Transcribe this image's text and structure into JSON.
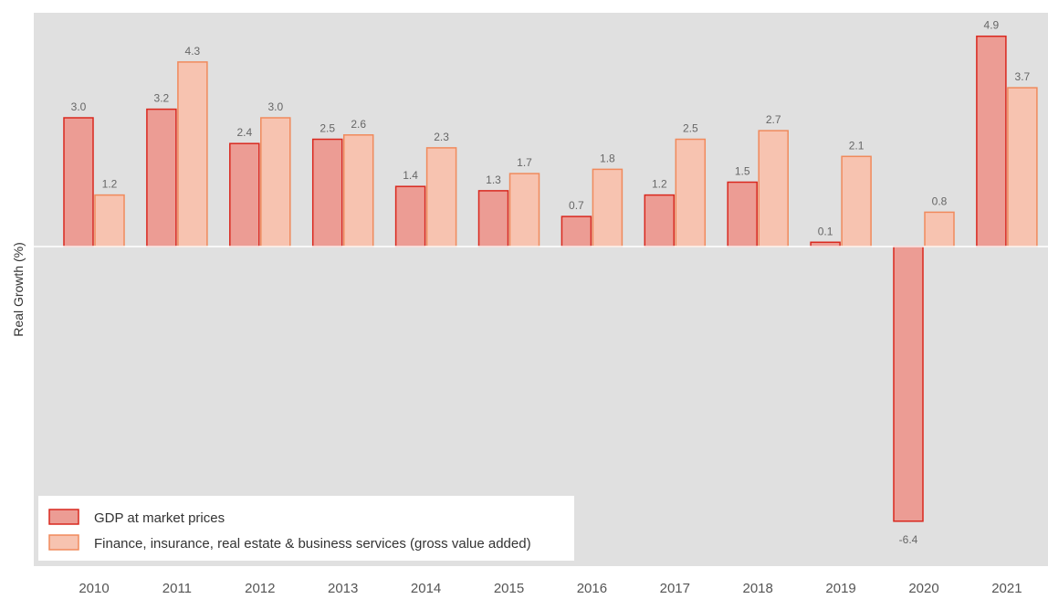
{
  "colors": {
    "plot_background": "#e0e0e0",
    "gdp_fill": "#ec9c94",
    "gdp_stroke": "#d9281e",
    "finance_fill": "#f7c3b0",
    "finance_stroke": "#f08a5c",
    "zero_line": "#ffffff",
    "label_text": "#666666"
  },
  "chart_data": {
    "type": "bar",
    "title": "",
    "xlabel": "",
    "ylabel": "Real Growth (%)",
    "categories": [
      "2010",
      "2011",
      "2012",
      "2013",
      "2014",
      "2015",
      "2016",
      "2017",
      "2018",
      "2019",
      "2020",
      "2021"
    ],
    "series": [
      {
        "name": "GDP at market prices",
        "values": [
          3.0,
          3.2,
          2.4,
          2.5,
          1.4,
          1.3,
          0.7,
          1.2,
          1.5,
          0.1,
          -6.4,
          4.9
        ],
        "labels": [
          "3.0",
          "3.2",
          "2.4",
          "2.5",
          "1.4",
          "1.3",
          "0.7",
          "1.2",
          "1.5",
          "0.1",
          "-6.4",
          "4.9"
        ]
      },
      {
        "name": "Finance, insurance, real estate & business services (gross value added)",
        "values": [
          1.2,
          4.3,
          3.0,
          2.6,
          2.3,
          1.7,
          1.8,
          2.5,
          2.7,
          2.1,
          0.8,
          3.7
        ],
        "labels": [
          "1.2",
          "4.3",
          "3.0",
          "2.6",
          "2.3",
          "1.7",
          "1.8",
          "2.5",
          "2.7",
          "2.1",
          "0.8",
          "3.7"
        ]
      }
    ],
    "ylim": [
      -7.1,
      5.6
    ],
    "grid": false,
    "legend_position": "bottom-left"
  }
}
